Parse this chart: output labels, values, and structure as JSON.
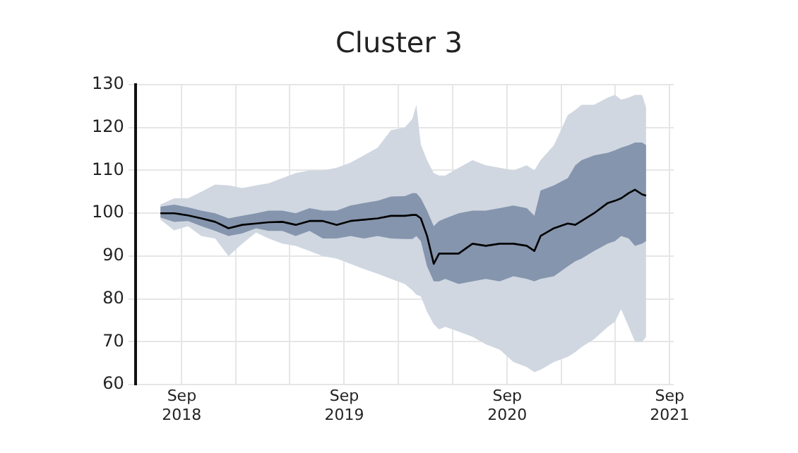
{
  "chart_data": {
    "type": "line",
    "title": "Cluster 3",
    "x": [
      "2018-07-15",
      "2018-08-15",
      "2018-09-15",
      "2018-10-15",
      "2018-11-15",
      "2018-12-15",
      "2019-01-15",
      "2019-02-15",
      "2019-03-15",
      "2019-04-15",
      "2019-05-15",
      "2019-06-15",
      "2019-07-15",
      "2019-08-15",
      "2019-09-15",
      "2019-10-15",
      "2019-11-15",
      "2019-12-15",
      "2020-01-15",
      "2020-02-01",
      "2020-02-10",
      "2020-02-20",
      "2020-03-05",
      "2020-03-20",
      "2020-04-01",
      "2020-04-15",
      "2020-05-15",
      "2020-06-15",
      "2020-07-15",
      "2020-08-15",
      "2020-09-15",
      "2020-10-15",
      "2020-11-01",
      "2020-11-15",
      "2020-12-15",
      "2021-01-15",
      "2021-02-01",
      "2021-02-15",
      "2021-03-15",
      "2021-04-15",
      "2021-05-01",
      "2021-05-15",
      "2021-06-01",
      "2021-06-15",
      "2021-07-01",
      "2021-07-10"
    ],
    "series": [
      {
        "color": "#d0d7e1",
        "values": [
          null,
          null,
          null,
          null,
          null,
          null,
          null,
          null,
          null,
          null,
          null,
          null,
          null,
          null,
          null,
          null,
          null,
          null,
          null,
          null,
          null,
          null,
          null,
          null,
          null,
          null,
          null,
          null,
          null,
          null,
          null,
          null,
          null,
          null,
          null,
          null,
          null,
          null,
          null,
          null,
          null,
          null,
          null,
          null,
          null,
          null
        ],
        "lower": [
          98.5,
          96,
          97,
          94.7,
          94.1,
          90,
          92.9,
          95.5,
          94.1,
          92.9,
          92.4,
          91.2,
          90,
          89.4,
          88.2,
          87,
          85.9,
          84.7,
          83.5,
          82,
          81,
          80.6,
          77,
          74.1,
          72.9,
          73.5,
          72.4,
          71.2,
          69.4,
          68.2,
          65.3,
          64.1,
          62.9,
          63.5,
          65.3,
          66.5,
          67.6,
          68.8,
          70.6,
          73.5,
          74.7,
          77.6,
          73.5,
          70,
          70,
          71.2
        ],
        "upper": [
          102,
          103.5,
          103.5,
          105,
          106.7,
          106.5,
          105.9,
          106.5,
          107,
          108.2,
          109.4,
          110,
          110,
          110.6,
          111.8,
          113.5,
          115.3,
          119.4,
          120,
          122,
          125.3,
          116,
          112.4,
          109.4,
          108.8,
          108.8,
          110.6,
          112.4,
          111.2,
          110.6,
          110,
          111.2,
          110,
          112.4,
          115.9,
          122.9,
          124.1,
          125.3,
          125.3,
          127,
          127.6,
          126.5,
          127,
          127.6,
          127.6,
          124.7
        ]
      },
      {
        "color": "#8595ad",
        "values": [
          null,
          null,
          null,
          null,
          null,
          null,
          null,
          null,
          null,
          null,
          null,
          null,
          null,
          null,
          null,
          null,
          null,
          null,
          null,
          null,
          null,
          null,
          null,
          null,
          null,
          null,
          null,
          null,
          null,
          null,
          null,
          null,
          null,
          null,
          null,
          null,
          null,
          null,
          null,
          null,
          null,
          null,
          null,
          null,
          null,
          null
        ],
        "lower": [
          99,
          98,
          98.2,
          97,
          95.9,
          94.7,
          95.3,
          96.5,
          95.9,
          95.9,
          94.7,
          95.9,
          94.1,
          94.1,
          94.7,
          94.1,
          94.7,
          94.1,
          94,
          94,
          94.7,
          93.5,
          87.6,
          84.1,
          84.1,
          84.7,
          83.5,
          84.1,
          84.7,
          84.1,
          85.3,
          84.7,
          84.1,
          84.7,
          85.3,
          87.6,
          88.8,
          89.4,
          91.2,
          92.9,
          93.5,
          94.7,
          94.1,
          92.4,
          92.9,
          93.5
        ],
        "upper": [
          101.5,
          102,
          101.4,
          100.6,
          100,
          98.8,
          99.4,
          100,
          100.6,
          100.6,
          100,
          101.2,
          100.6,
          100.6,
          101.8,
          102.4,
          102.9,
          103.9,
          104,
          104.7,
          104.7,
          103.5,
          100.6,
          97,
          98.2,
          98.8,
          100,
          100.6,
          100.6,
          101.2,
          101.8,
          101.2,
          99.4,
          105.3,
          106.5,
          108.2,
          111.2,
          112.4,
          113.5,
          114.1,
          114.7,
          115.3,
          115.9,
          116.5,
          116.5,
          115.9
        ]
      },
      {
        "type": "line",
        "color": "#000000",
        "values": [
          100,
          100,
          99.5,
          98.8,
          98,
          96.5,
          97.3,
          97.6,
          97.9,
          98,
          97.3,
          98.2,
          98.2,
          97.3,
          98.2,
          98.5,
          98.8,
          99.4,
          99.4,
          99.6,
          99.6,
          98.8,
          94.7,
          88.2,
          90.6,
          90.6,
          90.6,
          92.9,
          92.4,
          92.9,
          92.9,
          92.4,
          91.2,
          94.7,
          96.5,
          97.6,
          97.3,
          98.2,
          100,
          102.4,
          102.9,
          103.5,
          104.7,
          105.5,
          104.4,
          104.1
        ]
      }
    ],
    "xlim": [
      "2018-05-20",
      "2021-09-10"
    ],
    "xticks": [
      {
        "value": "2018-09-01",
        "label": "Sep 2018"
      },
      {
        "value": "2019-01-01",
        "label": null
      },
      {
        "value": "2019-05-01",
        "label": null
      },
      {
        "value": "2019-09-01",
        "label": "Sep 2019"
      },
      {
        "value": "2020-01-01",
        "label": null
      },
      {
        "value": "2020-05-01",
        "label": null
      },
      {
        "value": "2020-09-01",
        "label": "Sep 2020"
      },
      {
        "value": "2021-01-01",
        "label": null
      },
      {
        "value": "2021-05-01",
        "label": null
      },
      {
        "value": "2021-09-01",
        "label": "Sep 2021"
      }
    ],
    "ylim": [
      60,
      130
    ],
    "yticks": [
      60,
      70,
      80,
      90,
      100,
      110,
      120,
      130
    ],
    "grid": true,
    "legend": false,
    "marker": "none",
    "line_style": "solid"
  }
}
